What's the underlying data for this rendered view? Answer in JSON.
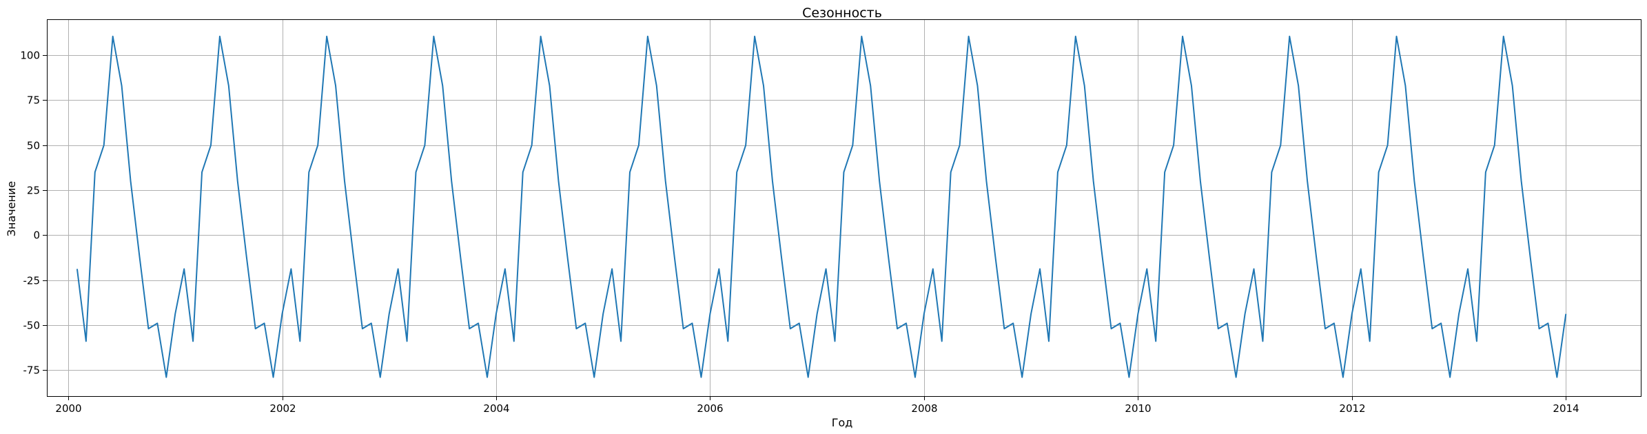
{
  "chart_data": {
    "type": "line",
    "title": "Сезонность",
    "xlabel": "Год",
    "ylabel": "Значение",
    "xlim": [
      1999.8,
      2014.7
    ],
    "ylim": [
      -89.5,
      120.0
    ],
    "grid": true,
    "legend": "none",
    "x_ticks": [
      2000,
      2002,
      2004,
      2006,
      2008,
      2010,
      2012,
      2014
    ],
    "y_ticks": [
      -75,
      -50,
      -25,
      0,
      25,
      50,
      75,
      100
    ],
    "series": [
      {
        "color": "#1f77b4",
        "monthly_pattern": [
          -18.8,
          -59,
          35,
          50,
          110.5,
          83,
          30,
          -12,
          -52,
          -49,
          -79,
          -43.8
        ],
        "x_start": 2000.083,
        "x_end": 2014.0
      }
    ]
  }
}
